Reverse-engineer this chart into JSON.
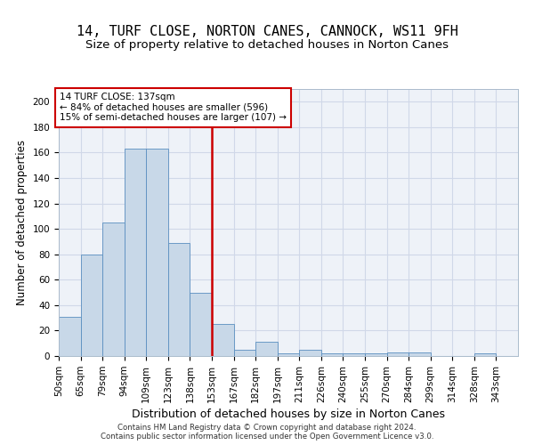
{
  "title": "14, TURF CLOSE, NORTON CANES, CANNOCK, WS11 9FH",
  "subtitle": "Size of property relative to detached houses in Norton Canes",
  "xlabel": "Distribution of detached houses by size in Norton Canes",
  "ylabel": "Number of detached properties",
  "tick_labels": [
    "50sqm",
    "65sqm",
    "79sqm",
    "94sqm",
    "109sqm",
    "123sqm",
    "138sqm",
    "153sqm",
    "167sqm",
    "182sqm",
    "197sqm",
    "211sqm",
    "226sqm",
    "240sqm",
    "255sqm",
    "270sqm",
    "284sqm",
    "299sqm",
    "314sqm",
    "328sqm",
    "343sqm"
  ],
  "bar_values": [
    31,
    80,
    105,
    163,
    163,
    89,
    50,
    25,
    5,
    11,
    2,
    5,
    2,
    2,
    2,
    3,
    3,
    0,
    0,
    2
  ],
  "bar_color": "#c8d8e8",
  "bar_edge_color": "#5a8fc0",
  "vertical_line_x": 6.5,
  "vertical_line_color": "#cc0000",
  "annotation_text": "14 TURF CLOSE: 137sqm\n← 84% of detached houses are smaller (596)\n15% of semi-detached houses are larger (107) →",
  "annotation_box_edgecolor": "#cc0000",
  "ylim": [
    0,
    210
  ],
  "yticks": [
    0,
    20,
    40,
    60,
    80,
    100,
    120,
    140,
    160,
    180,
    200
  ],
  "grid_color": "#d0d8e8",
  "background_color": "#eef2f8",
  "footer_text": "Contains HM Land Registry data © Crown copyright and database right 2024.\nContains public sector information licensed under the Open Government Licence v3.0.",
  "title_fontsize": 11,
  "subtitle_fontsize": 9.5,
  "ylabel_fontsize": 8.5,
  "xlabel_fontsize": 9,
  "tick_fontsize": 7.5
}
